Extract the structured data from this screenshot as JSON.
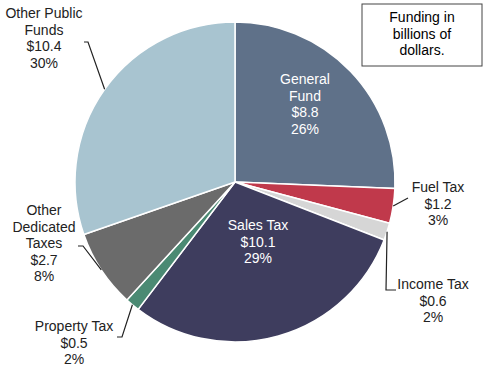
{
  "chart_data": {
    "type": "pie",
    "annotation": "Funding in billions of dollars.",
    "categories": [
      "General Fund",
      "Fuel Tax",
      "Income Tax",
      "Sales Tax",
      "Property Tax",
      "Other Dedicated Taxes",
      "Other Public Funds"
    ],
    "values": [
      8.8,
      1.2,
      0.6,
      10.1,
      0.5,
      2.7,
      10.4
    ],
    "value_labels": [
      "$8.8",
      "$1.2",
      "$0.6",
      "$10.1",
      "$0.5",
      "$2.7",
      "$10.4"
    ],
    "percentages": [
      26,
      3,
      2,
      29,
      2,
      8,
      30
    ],
    "percentage_labels": [
      "26%",
      "3%",
      "2%",
      "29%",
      "2%",
      "8%",
      "30%"
    ],
    "colors": [
      "#5f7189",
      "#c0394b",
      "#d6d6d6",
      "#3e3d5e",
      "#4b8a73",
      "#6b6b6b",
      "#a8c4d0"
    ],
    "data_labels": true
  }
}
